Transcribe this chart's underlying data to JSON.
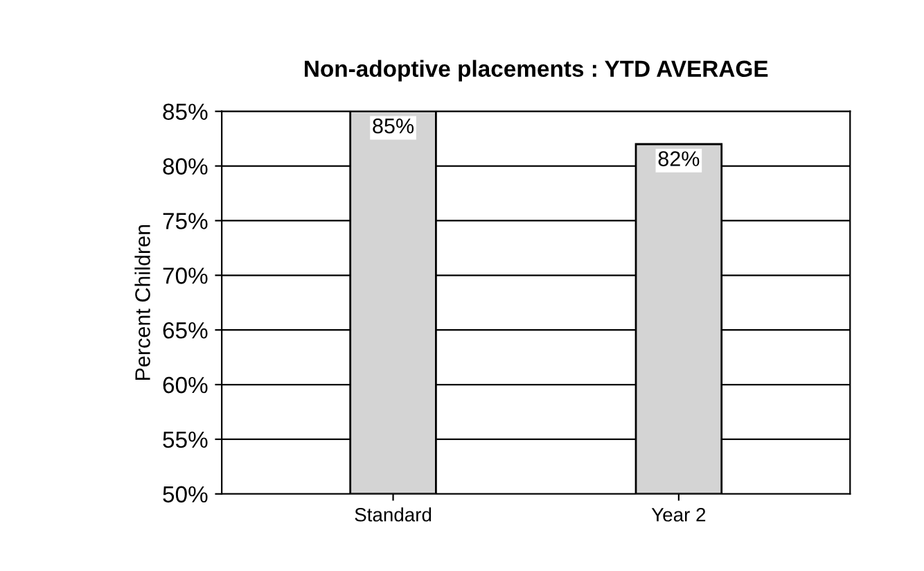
{
  "chart_data": {
    "type": "bar",
    "title": "Non-adoptive placements : YTD AVERAGE",
    "ylabel": "Percent Children",
    "categories": [
      "Standard",
      "Year 2"
    ],
    "values": [
      85,
      82
    ],
    "value_labels": [
      "85%",
      "82%"
    ],
    "color": "#d4d4d4",
    "ylim": [
      50,
      85
    ],
    "yticks": [
      {
        "value": 50,
        "label": "50%"
      },
      {
        "value": 55,
        "label": "55%"
      },
      {
        "value": 60,
        "label": "60%"
      },
      {
        "value": 65,
        "label": "65%"
      },
      {
        "value": 70,
        "label": "70%"
      },
      {
        "value": 75,
        "label": "75%"
      },
      {
        "value": 80,
        "label": "80%"
      },
      {
        "value": 85,
        "label": "85%"
      }
    ],
    "grid": "y"
  }
}
